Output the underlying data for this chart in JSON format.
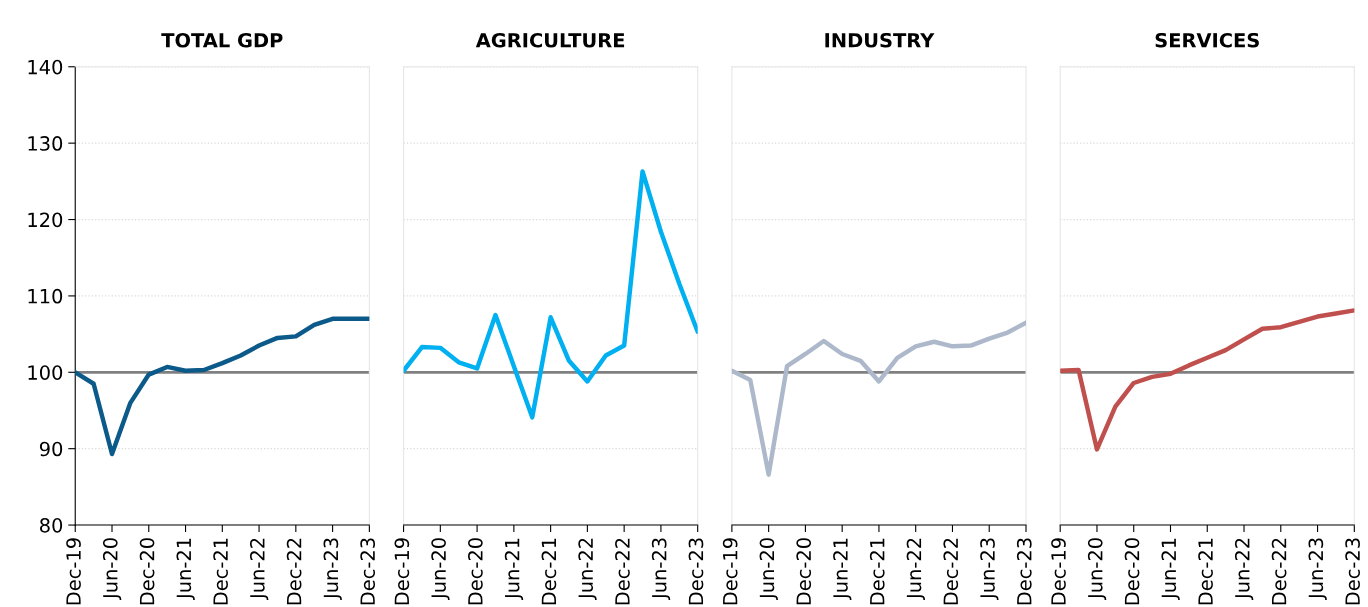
{
  "chart_data": [
    {
      "type": "line",
      "title": "TOTAL GDP",
      "categories": [
        "Dec-19",
        null,
        "Jun-20",
        null,
        "Dec-20",
        null,
        "Jun-21",
        null,
        "Dec-21",
        null,
        "Jun-22",
        null,
        "Dec-22",
        null,
        "Jun-23",
        null,
        "Dec-23"
      ],
      "series": [
        {
          "color": "#0b5a8a",
          "values": [
            100,
            98.5,
            89.3,
            96,
            99.7,
            100.7,
            100.2,
            100.3,
            101.2,
            102.2,
            103.5,
            104.5,
            104.7,
            106.2,
            107,
            107,
            107
          ]
        }
      ],
      "ylim": [
        80,
        140
      ],
      "yticks": [
        80,
        90,
        100,
        110,
        120,
        130,
        140
      ],
      "grid": "y",
      "ref_lines": [
        {
          "axis": "y",
          "value": 100,
          "color": "#808080"
        }
      ]
    },
    {
      "type": "line",
      "title": "AGRICULTURE",
      "categories": [
        "Dec-19",
        null,
        "Jun-20",
        null,
        "Dec-20",
        null,
        "Jun-21",
        null,
        "Dec-21",
        null,
        "Jun-22",
        null,
        "Dec-22",
        null,
        "Jun-23",
        null,
        "Dec-23"
      ],
      "series": [
        {
          "color": "#00b0f0",
          "values": [
            100.2,
            103.3,
            103.2,
            101.3,
            100.5,
            107.5,
            100.8,
            94.1,
            107.2,
            101.5,
            98.8,
            102.2,
            103.5,
            126.3,
            118.4,
            111.6,
            105.3
          ]
        }
      ],
      "ylim": [
        80,
        140
      ],
      "yticks": [
        80,
        90,
        100,
        110,
        120,
        130,
        140
      ],
      "tick_labels": "x",
      "grid": "y",
      "ref_lines": [
        {
          "axis": "y",
          "value": 100,
          "color": "#808080"
        }
      ]
    },
    {
      "type": "line",
      "title": "INDUSTRY",
      "categories": [
        "Dec-19",
        null,
        "Jun-20",
        null,
        "Dec-20",
        null,
        "Jun-21",
        null,
        "Dec-21",
        null,
        "Jun-22",
        null,
        "Dec-22",
        null,
        "Jun-23",
        null,
        "Dec-23"
      ],
      "series": [
        {
          "color": "#adb9ca",
          "values": [
            100.2,
            99,
            86.6,
            100.8,
            102.4,
            104.1,
            102.4,
            101.5,
            98.8,
            101.9,
            103.4,
            104,
            103.4,
            103.5,
            104.4,
            105.2,
            106.5
          ]
        }
      ],
      "ylim": [
        80,
        140
      ],
      "yticks": [
        80,
        90,
        100,
        110,
        120,
        130,
        140
      ],
      "tick_labels": "x",
      "grid": "y",
      "ref_lines": [
        {
          "axis": "y",
          "value": 100,
          "color": "#808080"
        }
      ]
    },
    {
      "type": "line",
      "title": "SERVICES",
      "categories": [
        "Dec-19",
        null,
        "Jun-20",
        null,
        "Dec-20",
        null,
        "Jun-21",
        null,
        "Dec-21",
        null,
        "Jun-22",
        null,
        "Dec-22",
        null,
        "Jun-23",
        null,
        "Dec-23"
      ],
      "series": [
        {
          "color": "#c0504d",
          "values": [
            100.2,
            100.3,
            89.9,
            95.5,
            98.6,
            99.4,
            99.8,
            100.9,
            101.9,
            102.9,
            104.3,
            105.7,
            105.9,
            106.6,
            107.3,
            107.7,
            108.1
          ]
        }
      ],
      "ylim": [
        80,
        140
      ],
      "yticks": [
        80,
        90,
        100,
        110,
        120,
        130,
        140
      ],
      "tick_labels": "x",
      "grid": "y",
      "ref_lines": [
        {
          "axis": "y",
          "value": 100,
          "color": "#808080"
        }
      ]
    }
  ]
}
